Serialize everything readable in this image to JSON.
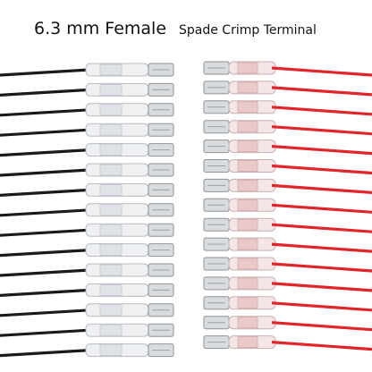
{
  "title": {
    "main": "6.3 mm Female",
    "sub": "Spade Crimp Terminal"
  }
}
